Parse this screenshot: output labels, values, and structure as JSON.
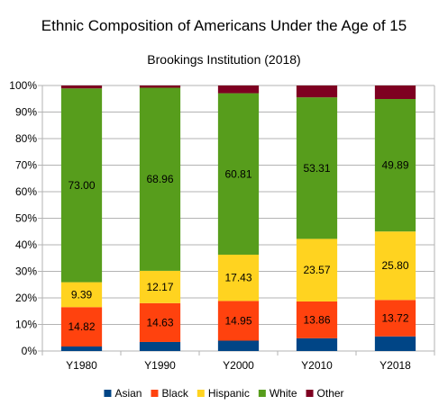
{
  "chart_data": {
    "type": "bar",
    "stacked": true,
    "percent_stacked": true,
    "title": "Ethnic Composition of Americans Under the Age of 15",
    "subtitle": "Brookings Institution (2018)",
    "categories": [
      "Y1980",
      "Y1990",
      "Y2000",
      "Y2010",
      "Y2018"
    ],
    "y_tick_labels": [
      "0%",
      "10%",
      "20%",
      "30%",
      "40%",
      "50%",
      "60%",
      "70%",
      "80%",
      "90%",
      "100%"
    ],
    "ylim": [
      0,
      100
    ],
    "grid": true,
    "legend_position": "bottom",
    "series": [
      {
        "name": "Asian",
        "color": "#004586",
        "values": [
          1.7,
          3.4,
          3.9,
          4.8,
          5.5
        ],
        "labels": [
          "",
          "",
          "",
          "",
          ""
        ]
      },
      {
        "name": "Black",
        "color": "#ff420e",
        "values": [
          14.82,
          14.63,
          14.95,
          13.86,
          13.72
        ],
        "labels": [
          "14.82",
          "14.63",
          "14.95",
          "13.86",
          "13.72"
        ]
      },
      {
        "name": "Hispanic",
        "color": "#ffd320",
        "values": [
          9.39,
          12.17,
          17.43,
          23.57,
          25.8
        ],
        "labels": [
          "9.39",
          "12.17",
          "17.43",
          "23.57",
          "25.80"
        ]
      },
      {
        "name": "White",
        "color": "#579d1c",
        "values": [
          73.0,
          68.96,
          60.81,
          53.31,
          49.89
        ],
        "labels": [
          "73.00",
          "68.96",
          "60.81",
          "53.31",
          "49.89"
        ]
      },
      {
        "name": "Other",
        "color": "#7e0021",
        "values": [
          1.09,
          0.84,
          2.91,
          4.46,
          5.09
        ],
        "labels": [
          "",
          "",
          "",
          "",
          ""
        ]
      }
    ]
  }
}
